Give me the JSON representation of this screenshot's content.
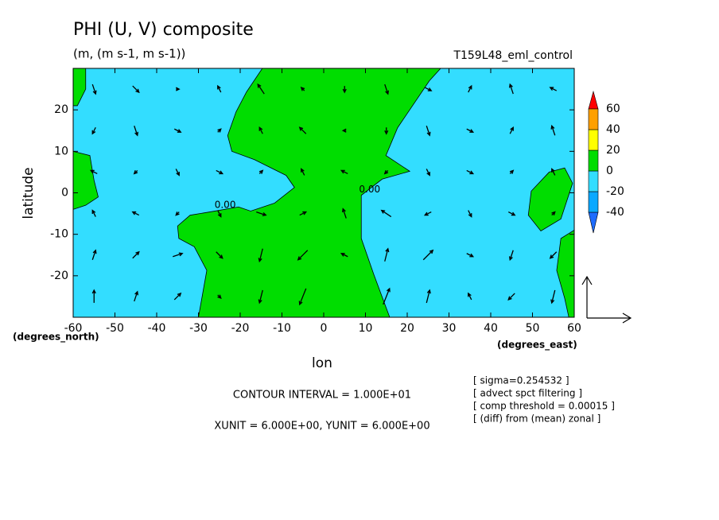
{
  "chart_data": {
    "type": "contour_vector",
    "title": "PHI (U, V) composite",
    "subtitle": "(m, (m s-1, m s-1))",
    "experiment": "T159L48_eml_control",
    "x_label": "lon",
    "y_label": "latitude",
    "x_units": "(degrees_east)",
    "y_units": "(degrees_north)",
    "xlim": [
      -60,
      60
    ],
    "ylim": [
      -30,
      30
    ],
    "xticks": [
      -60,
      -50,
      -40,
      -30,
      -20,
      -10,
      0,
      10,
      20,
      30,
      40,
      50,
      60
    ],
    "yticks": [
      -20,
      -10,
      0,
      10,
      20
    ],
    "contour_interval": "CONTOUR INTERVAL = 1.000E+01",
    "vector_units": "XUNIT = 6.000E+00, YUNIT = 6.000E+00",
    "notes": [
      "[ sigma=0.254532 ]",
      "[ advect spct filtering ]",
      "[ comp threshold = 0.00015 ]",
      "[ (diff) from (mean) zonal ]"
    ],
    "colorbar": {
      "levels": [
        -40,
        -20,
        0,
        20,
        40,
        60
      ],
      "colors": [
        "#1e6cff",
        "#0aa8ff",
        "#33ddff",
        "#00dd00",
        "#ffff00",
        "#ffa000",
        "#ff0000"
      ]
    },
    "background_range": [
      -20,
      0
    ],
    "regions": [
      {
        "range": [
          0,
          20
        ],
        "lon": [
          -60,
          -57,
          -57,
          -59,
          -60
        ],
        "lat": [
          30,
          30,
          25,
          21,
          21
        ]
      },
      {
        "range": [
          0,
          20
        ],
        "lon": [
          -60,
          -56,
          -55,
          -54,
          -57,
          -60
        ],
        "lat": [
          10,
          9,
          3,
          -1,
          -3,
          -4
        ]
      },
      {
        "range": [
          0,
          20
        ],
        "lon": [
          -14.7,
          28,
          25.3,
          17.7,
          14.9,
          20.6,
          14,
          9,
          9,
          12,
          15.8,
          -30,
          -28,
          -31,
          -34.7,
          -35,
          -32,
          -26,
          -20.4,
          -17.5,
          -11.8,
          -7,
          -9,
          -16.6,
          -22,
          -23,
          -21,
          -18.5
        ],
        "lat": [
          30,
          30,
          27,
          15.7,
          9,
          5.2,
          3.3,
          -0.6,
          -11,
          -19.7,
          -30,
          -30,
          -18.7,
          -13,
          -11,
          -8,
          -5.4,
          -4.4,
          -3.4,
          -4.4,
          -2.5,
          1.3,
          4.2,
          8,
          10,
          13.8,
          19.5,
          24.3
        ]
      },
      {
        "range": [
          0,
          20
        ],
        "lon": [
          54,
          57.7,
          59.6,
          56.8,
          52,
          49,
          49.7
        ],
        "lat": [
          5,
          6,
          2.3,
          -6.3,
          -9.2,
          -5.4,
          0.4
        ]
      },
      {
        "range": [
          0,
          20
        ],
        "lon": [
          60,
          56.8,
          55.8,
          57.7,
          58.7,
          60
        ],
        "lat": [
          -9,
          -11,
          -18.7,
          -25.4,
          -30,
          -30
        ]
      }
    ],
    "contour_labels": [
      {
        "text": "0.00",
        "lon": -23.6,
        "lat": -3
      },
      {
        "text": "0.00",
        "lon": 11,
        "lat": 0.8
      }
    ],
    "vector_lon": [
      -55,
      -45,
      -35,
      -25,
      -15,
      -5,
      5,
      15,
      25,
      35,
      45,
      55
    ],
    "vector_lat": [
      25,
      15,
      5,
      -5,
      -15,
      -25
    ],
    "u": [
      [
        1,
        2,
        1,
        -1,
        -2,
        -1,
        0,
        1,
        2,
        1,
        -1,
        -2
      ],
      [
        -1,
        1,
        2,
        1,
        -1,
        -2,
        -1,
        0,
        1,
        2,
        1,
        -1
      ],
      [
        -2,
        -1,
        1,
        2,
        1,
        -1,
        -2,
        -1,
        1,
        2,
        1,
        -1
      ],
      [
        -1,
        -2,
        -1,
        1,
        3,
        2,
        -1,
        -3,
        -2,
        1,
        2,
        1
      ],
      [
        1,
        2,
        3,
        2,
        -1,
        -3,
        -2,
        1,
        3,
        2,
        -1,
        -2
      ],
      [
        0,
        1,
        2,
        1,
        -1,
        -2,
        0,
        2,
        1,
        -1,
        -2,
        -1
      ]
    ],
    "v": [
      [
        -3,
        -2,
        0,
        2,
        3,
        1,
        -2,
        -3,
        -1,
        2,
        3,
        1
      ],
      [
        -2,
        -3,
        -1,
        1,
        2,
        2,
        0,
        -2,
        -3,
        -1,
        2,
        3
      ],
      [
        1,
        -1,
        -2,
        -1,
        1,
        2,
        1,
        -1,
        -2,
        -1,
        1,
        2
      ],
      [
        2,
        1,
        -1,
        -2,
        -1,
        1,
        3,
        2,
        -1,
        -2,
        -1,
        1
      ],
      [
        3,
        2,
        1,
        -2,
        -4,
        -3,
        1,
        4,
        3,
        -1,
        -3,
        -2
      ],
      [
        4,
        3,
        2,
        -1,
        -4,
        -5,
        0,
        5,
        4,
        2,
        -2,
        -4
      ]
    ]
  }
}
